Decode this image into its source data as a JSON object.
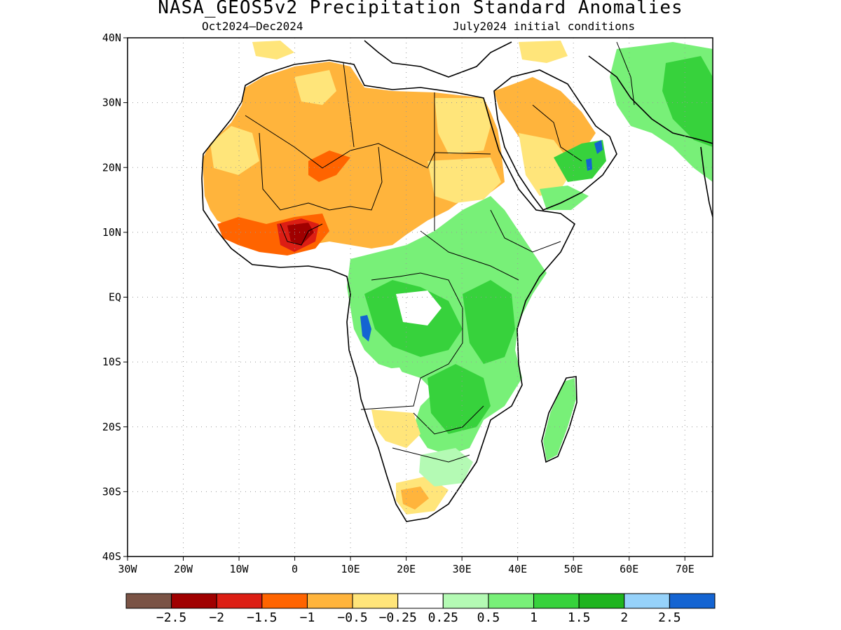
{
  "title": "NASA_GEOS5v2 Precipitation Standard Anomalies",
  "period": "Oct2024–Dec2024",
  "initial_conditions": "July2024 initial conditions",
  "map": {
    "lat_labels": [
      "40N",
      "30N",
      "20N",
      "10N",
      "EQ",
      "10S",
      "20S",
      "30S",
      "40S"
    ],
    "lon_labels": [
      "30W",
      "20W",
      "10W",
      "0",
      "10E",
      "20E",
      "30E",
      "40E",
      "50E",
      "60E",
      "70E"
    ],
    "lat_range": [
      -40,
      40
    ],
    "lon_range": [
      -30,
      75
    ],
    "grid": "dotted"
  },
  "colorbar": {
    "colors": [
      "#7a5345",
      "#a00000",
      "#dc1e14",
      "#ff6400",
      "#ffb43c",
      "#ffe57a",
      "#ffffff",
      "#b4fab4",
      "#78f078",
      "#37d23c",
      "#1eb41e",
      "#96d2fa",
      "#1464d2"
    ],
    "labels": [
      "−2.5",
      "−2",
      "−1.5",
      "−1",
      "−0.5",
      "−0.25",
      "0.25",
      "0.5",
      "1",
      "1.5",
      "2",
      "2.5"
    ]
  }
}
